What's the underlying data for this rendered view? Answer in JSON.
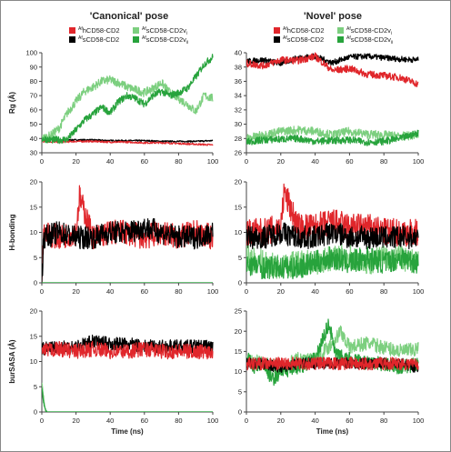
{
  "headers": {
    "left": "'Canonical' pose",
    "right": "'Novel' pose"
  },
  "colors": {
    "hCD58_CD2": "#e0262b",
    "sCD58_CD2": "#000000",
    "sCD58_CD2vi": "#7ccf7f",
    "sCD58_CD2vii": "#27a33c"
  },
  "chart_data": [
    {
      "id": "canonical-rg",
      "type": "line",
      "ylabel": "Rg (Å)",
      "xlabel": "",
      "xlim": [
        0,
        100
      ],
      "ylim": [
        30,
        100
      ],
      "xticks": [
        "0",
        "20",
        "40",
        "60",
        "80",
        "100"
      ],
      "yticks": [
        "30",
        "40",
        "50",
        "60",
        "70",
        "80",
        "90",
        "100"
      ],
      "legend": {
        "position": "top",
        "entries": [
          {
            "key": "hCD58_CD2",
            "sup": "Af",
            "text": "hCD58-CD2"
          },
          {
            "key": "sCD58_CD2vi",
            "sup": "Af",
            "text": "sCD58-CD2v",
            "sub": "i"
          },
          {
            "key": "sCD58_CD2",
            "sup": "Af",
            "text": "sCD58-CD2"
          },
          {
            "key": "sCD58_CD2vii",
            "sup": "Af",
            "text": "sCD58-CD2v",
            "sub": "ii"
          }
        ]
      },
      "series": [
        {
          "key": "sCD58_CD2",
          "x": [
            0,
            10,
            20,
            30,
            40,
            50,
            60,
            70,
            80,
            90,
            100
          ],
          "y": [
            39,
            39,
            39,
            39,
            38.5,
            38.5,
            38.5,
            38,
            38,
            38,
            38.5
          ]
        },
        {
          "key": "hCD58_CD2",
          "x": [
            0,
            10,
            20,
            30,
            40,
            50,
            60,
            70,
            80,
            90,
            100
          ],
          "y": [
            38,
            37.5,
            38,
            38,
            37.5,
            37.5,
            37,
            37,
            36.5,
            36,
            35.5
          ]
        },
        {
          "key": "sCD58_CD2vi",
          "x": [
            0,
            5,
            10,
            15,
            20,
            25,
            30,
            35,
            40,
            45,
            50,
            55,
            60,
            65,
            70,
            75,
            80,
            85,
            90,
            95,
            100
          ],
          "y": [
            40,
            42,
            47,
            58,
            66,
            73,
            76,
            80,
            81,
            79,
            76,
            74,
            72,
            75,
            79,
            72,
            68,
            64,
            59,
            70,
            68
          ]
        },
        {
          "key": "sCD58_CD2vii",
          "x": [
            0,
            5,
            10,
            15,
            20,
            25,
            30,
            35,
            40,
            45,
            50,
            55,
            60,
            65,
            70,
            75,
            80,
            85,
            90,
            95,
            100
          ],
          "y": [
            40,
            39,
            39,
            39.5,
            46,
            53,
            57,
            62,
            58,
            66,
            70,
            68,
            64,
            70,
            73,
            70,
            72,
            75,
            83,
            92,
            97
          ]
        }
      ]
    },
    {
      "id": "novel-rg",
      "type": "line",
      "ylabel": "",
      "xlabel": "",
      "xlim": [
        0,
        100
      ],
      "ylim": [
        26,
        40
      ],
      "xticks": [
        "0",
        "20",
        "40",
        "60",
        "80",
        "100"
      ],
      "yticks": [
        "26",
        "28",
        "30",
        "32",
        "34",
        "36",
        "38",
        "40"
      ],
      "legend": {
        "position": "top",
        "entries": [
          {
            "key": "hCD58_CD2",
            "sup": "Af",
            "text": "hCD58-CD2"
          },
          {
            "key": "sCD58_CD2vi",
            "sup": "Af",
            "text": "sCD58-CD2v",
            "sub": "i"
          },
          {
            "key": "sCD58_CD2",
            "sup": "Af",
            "text": "sCD58-CD2"
          },
          {
            "key": "sCD58_CD2vii",
            "sup": "Af",
            "text": "sCD58-CD2v",
            "sub": "ii"
          }
        ]
      },
      "series": [
        {
          "key": "sCD58_CD2",
          "x": [
            0,
            10,
            20,
            30,
            40,
            50,
            60,
            70,
            80,
            90,
            100
          ],
          "y": [
            38.8,
            39,
            38.5,
            39.3,
            39.5,
            38.6,
            39.4,
            39.5,
            39.3,
            39.1,
            39.0
          ]
        },
        {
          "key": "hCD58_CD2",
          "x": [
            0,
            10,
            20,
            30,
            40,
            50,
            60,
            70,
            80,
            90,
            100
          ],
          "y": [
            38.5,
            38.2,
            39,
            38.9,
            39.5,
            37.5,
            37.8,
            37,
            36.8,
            36.5,
            35.6
          ]
        },
        {
          "key": "sCD58_CD2vi",
          "x": [
            0,
            10,
            20,
            30,
            40,
            50,
            60,
            70,
            80,
            90,
            100
          ],
          "y": [
            28,
            28.5,
            29,
            29.2,
            29,
            28.5,
            29,
            28.6,
            28.5,
            28.3,
            28.5
          ]
        },
        {
          "key": "sCD58_CD2vii",
          "x": [
            0,
            10,
            20,
            30,
            40,
            50,
            60,
            70,
            80,
            90,
            100
          ],
          "y": [
            27.5,
            27.8,
            27.9,
            28,
            27.6,
            27.7,
            27.8,
            27.5,
            27.6,
            28,
            28.8
          ]
        }
      ]
    },
    {
      "id": "canonical-hbond",
      "type": "line",
      "ylabel": "H-bonding",
      "xlabel": "",
      "xlim": [
        0,
        100
      ],
      "ylim": [
        0,
        20
      ],
      "xticks": [
        "0",
        "20",
        "40",
        "60",
        "80",
        "100"
      ],
      "yticks": [
        "0",
        "5",
        "10",
        "15",
        "20"
      ],
      "series": [
        {
          "key": "hCD58_CD2",
          "x": [
            0,
            1,
            10,
            20,
            22,
            30,
            40,
            50,
            60,
            70,
            80,
            90,
            100
          ],
          "y": [
            0,
            10,
            9,
            10,
            17,
            9,
            10,
            10,
            9,
            10,
            9,
            10,
            9
          ]
        },
        {
          "key": "sCD58_CD2",
          "x": [
            0,
            1,
            10,
            20,
            30,
            40,
            50,
            60,
            70,
            80,
            90,
            100
          ],
          "y": [
            0,
            9,
            10,
            9,
            9,
            10,
            10,
            11,
            10,
            9,
            9,
            10
          ]
        },
        {
          "key": "sCD58_CD2vi",
          "x": [
            0,
            100
          ],
          "y": [
            0,
            0
          ]
        },
        {
          "key": "sCD58_CD2vii",
          "x": [
            0,
            100
          ],
          "y": [
            0,
            0
          ]
        }
      ]
    },
    {
      "id": "novel-hbond",
      "type": "line",
      "ylabel": "",
      "xlabel": "",
      "xlim": [
        0,
        100
      ],
      "ylim": [
        0,
        20
      ],
      "xticks": [
        "0",
        "20",
        "40",
        "60",
        "80",
        "100"
      ],
      "yticks": [
        "0",
        "5",
        "10",
        "15",
        "20"
      ],
      "series": [
        {
          "key": "hCD58_CD2",
          "x": [
            0,
            10,
            20,
            22,
            30,
            40,
            50,
            60,
            70,
            80,
            90,
            100
          ],
          "y": [
            10,
            10,
            11,
            18,
            11,
            11,
            12,
            11,
            11,
            10,
            10,
            10
          ]
        },
        {
          "key": "sCD58_CD2",
          "x": [
            0,
            10,
            20,
            30,
            40,
            50,
            60,
            70,
            80,
            90,
            100
          ],
          "y": [
            9,
            9,
            10,
            9,
            9,
            10,
            9,
            9,
            9,
            9,
            9
          ]
        },
        {
          "key": "sCD58_CD2vi",
          "x": [
            0,
            10,
            20,
            30,
            40,
            50,
            60,
            70,
            80,
            90,
            100
          ],
          "y": [
            5,
            4,
            3,
            4,
            4,
            5,
            5,
            4,
            5,
            5,
            4
          ]
        },
        {
          "key": "sCD58_CD2vii",
          "x": [
            0,
            10,
            20,
            30,
            40,
            50,
            60,
            70,
            80,
            90,
            100
          ],
          "y": [
            4,
            3,
            3,
            3,
            4,
            5,
            4,
            5,
            4,
            5,
            4
          ]
        }
      ]
    },
    {
      "id": "canonical-bursasa",
      "type": "line",
      "ylabel": "burSASA (Å)",
      "xlabel": "Time (ns)",
      "xlim": [
        0,
        100
      ],
      "ylim": [
        0,
        20
      ],
      "xticks": [
        "0",
        "20",
        "40",
        "60",
        "80",
        "100"
      ],
      "yticks": [
        "0",
        "5",
        "10",
        "15",
        "20"
      ],
      "series": [
        {
          "key": "sCD58_CD2",
          "x": [
            0,
            10,
            20,
            30,
            40,
            50,
            60,
            70,
            80,
            90,
            100
          ],
          "y": [
            12.5,
            13,
            13,
            14,
            13.5,
            13.5,
            13,
            13,
            13,
            13,
            13
          ]
        },
        {
          "key": "hCD58_CD2",
          "x": [
            0,
            10,
            20,
            30,
            40,
            50,
            60,
            70,
            80,
            90,
            100
          ],
          "y": [
            12,
            12.5,
            12,
            12.5,
            12,
            12,
            12.5,
            12,
            12,
            12,
            12
          ]
        },
        {
          "key": "sCD58_CD2vi",
          "x": [
            0,
            1,
            2,
            3,
            100
          ],
          "y": [
            6,
            3,
            0.5,
            0,
            0
          ]
        },
        {
          "key": "sCD58_CD2vii",
          "x": [
            0,
            1,
            2,
            3,
            100
          ],
          "y": [
            5,
            2,
            0.5,
            0,
            0
          ]
        }
      ]
    },
    {
      "id": "novel-bursasa",
      "type": "line",
      "ylabel": "",
      "xlabel": "Time (ns)",
      "xlim": [
        0,
        100
      ],
      "ylim": [
        0,
        25
      ],
      "xticks": [
        "0",
        "20",
        "40",
        "60",
        "80",
        "100"
      ],
      "yticks": [
        "0",
        "5",
        "10",
        "15",
        "20",
        "25"
      ],
      "series": [
        {
          "key": "sCD58_CD2vi",
          "x": [
            0,
            10,
            20,
            30,
            40,
            50,
            55,
            60,
            70,
            80,
            90,
            100
          ],
          "y": [
            13,
            12,
            11,
            13,
            13,
            17,
            20,
            16,
            17,
            16,
            15,
            15.5
          ]
        },
        {
          "key": "sCD58_CD2vii",
          "x": [
            0,
            5,
            10,
            15,
            20,
            30,
            40,
            48,
            52,
            60,
            70,
            80,
            90,
            100
          ],
          "y": [
            14,
            11,
            12,
            8,
            10,
            11,
            13,
            22,
            14,
            13,
            12,
            12,
            11,
            12
          ]
        },
        {
          "key": "sCD58_CD2",
          "x": [
            0,
            10,
            20,
            30,
            40,
            50,
            60,
            70,
            80,
            90,
            100
          ],
          "y": [
            12,
            12,
            11,
            12,
            12,
            12,
            12,
            12,
            12,
            12,
            11
          ]
        },
        {
          "key": "hCD58_CD2",
          "x": [
            0,
            10,
            20,
            30,
            40,
            50,
            60,
            70,
            80,
            90,
            100
          ],
          "y": [
            12,
            12,
            12,
            12,
            12,
            12,
            12,
            12,
            12,
            12,
            12
          ]
        }
      ]
    }
  ]
}
